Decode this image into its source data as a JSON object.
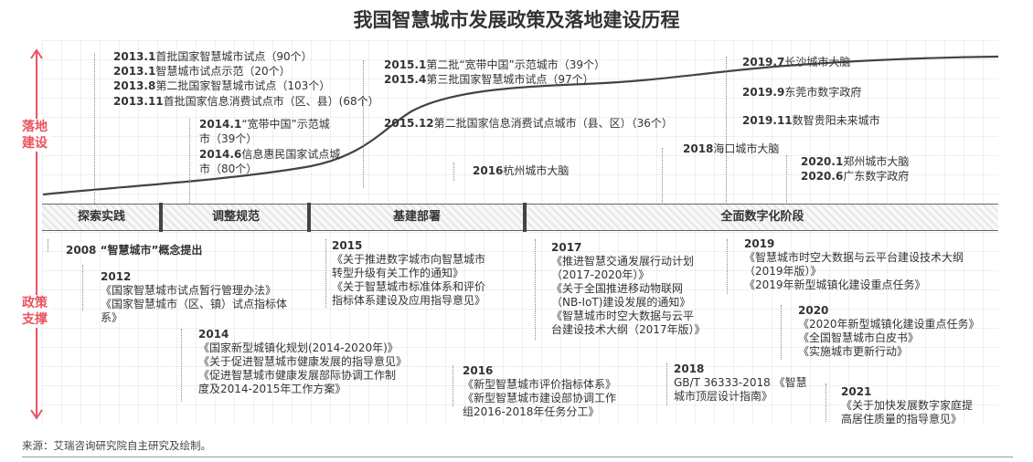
{
  "title": "我国智慧城市发展政策及落地建设历程",
  "axis": {
    "top_label": "落地\n建设",
    "bottom_label": "政策\n支撑"
  },
  "stages": [
    "探索实践",
    "调整规范",
    "基建部署",
    "全面数字化阶段"
  ],
  "construction": [
    {
      "id": "c1",
      "date": "2013.1",
      "text": "首批国家智慧城市试点（90个）"
    },
    {
      "id": "c2",
      "date": "2013.1",
      "text": "智慧城市试点示范（20个）"
    },
    {
      "id": "c3",
      "date": "2013.8",
      "text": "第二批国家智慧城市试点（103个）"
    },
    {
      "id": "c4",
      "date": "2013.11",
      "text": "首批国家信息消费试点市（区、县）(68个）"
    },
    {
      "id": "c5",
      "date": "2014.1",
      "text": "“宽带中国”示范城"
    },
    {
      "id": "c5b",
      "date": "",
      "text": "市（39个）"
    },
    {
      "id": "c6",
      "date": "2014.6",
      "text": "信息惠民国家试点城"
    },
    {
      "id": "c6b",
      "date": "",
      "text": "市（80个）"
    },
    {
      "id": "c7",
      "date": "2015.1",
      "text": "第二批“宽带中国”示范城市（39个）"
    },
    {
      "id": "c8",
      "date": "2015.4",
      "text": "第三批国家智慧城市试点（97个）"
    },
    {
      "id": "c9",
      "date": "2015.12",
      "text": "第二批国家信息消费试点城市（县、区）（36个）"
    },
    {
      "id": "c10",
      "date": "2016",
      "text": "杭州城市大脑"
    },
    {
      "id": "c11",
      "date": "2018",
      "text": "海口城市大脑"
    },
    {
      "id": "c12",
      "date": "2019.7",
      "text": "长沙城市大脑"
    },
    {
      "id": "c13",
      "date": "2019.9",
      "text": "东莞市数字政府"
    },
    {
      "id": "c14",
      "date": "2019.11",
      "text": "数智贵阳未来城市"
    },
    {
      "id": "c15",
      "date": "2020.1",
      "text": "郑州城市大脑"
    },
    {
      "id": "c16",
      "date": "2020.6",
      "text": "广东数字政府"
    }
  ],
  "policy": {
    "p2008": "2008 “智慧城市”概念提出",
    "y2012": "2012",
    "p2012": [
      "《国家智慧城市试点暂行管理办法》",
      "《国家智慧城市（区、镇）试点指标体",
      "系》"
    ],
    "y2014": "2014",
    "p2014": [
      "《国家新型城镇化规划(2014-2020年)》",
      "《关于促进智慧城市健康发展的指导意见》",
      "《促进智慧城市健康发展部际协调工作制",
      "度及2014-2015年工作方案》"
    ],
    "y2015": "2015",
    "p2015": [
      "《关于推进数字城市向智慧城市",
      "转型升级有关工作的通知》",
      "《关于智慧城市标准体系和评价",
      "指标体系建设及应用指导意见》"
    ],
    "y2016": "2016",
    "p2016": [
      "《新型智慧城市评价指标体系》",
      "《新型智慧城市建设部协调工作",
      "组2016-2018年任务分工》"
    ],
    "y2017": "2017",
    "p2017": [
      "《推进智慧交通发展行动计划",
      "（2017-2020年）》",
      "《关于全国推进移动物联网",
      "（NB-IoT)建设发展的通知》",
      "《智慧城市时空大数据与云平",
      "台建设技术大纲（2017年版）》"
    ],
    "y2018": "2018",
    "p2018": [
      "GB/T 36333-2018 《智慧",
      "城市顶层设计指南》"
    ],
    "y2019": "2019",
    "p2019": [
      "《智慧城市时空大数据与云平台建设技术大纲",
      "（2019年版）》",
      "《2019年新型城镇化建设重点任务》"
    ],
    "y2020": "2020",
    "p2020": [
      "《2020年新型城镇化建设重点任务》",
      "《全国智慧城市白皮书》",
      "《实施城市更新行动》"
    ],
    "y2021": "2021",
    "p2021": [
      "《关于加快发展数字家庭提",
      "高居住质量的指导意见》"
    ]
  },
  "source": "来源：艾瑞咨询研究院自主研究及绘制。",
  "colors": {
    "accent": "#e8545e",
    "text": "#333333",
    "stage_border": "#666666"
  }
}
